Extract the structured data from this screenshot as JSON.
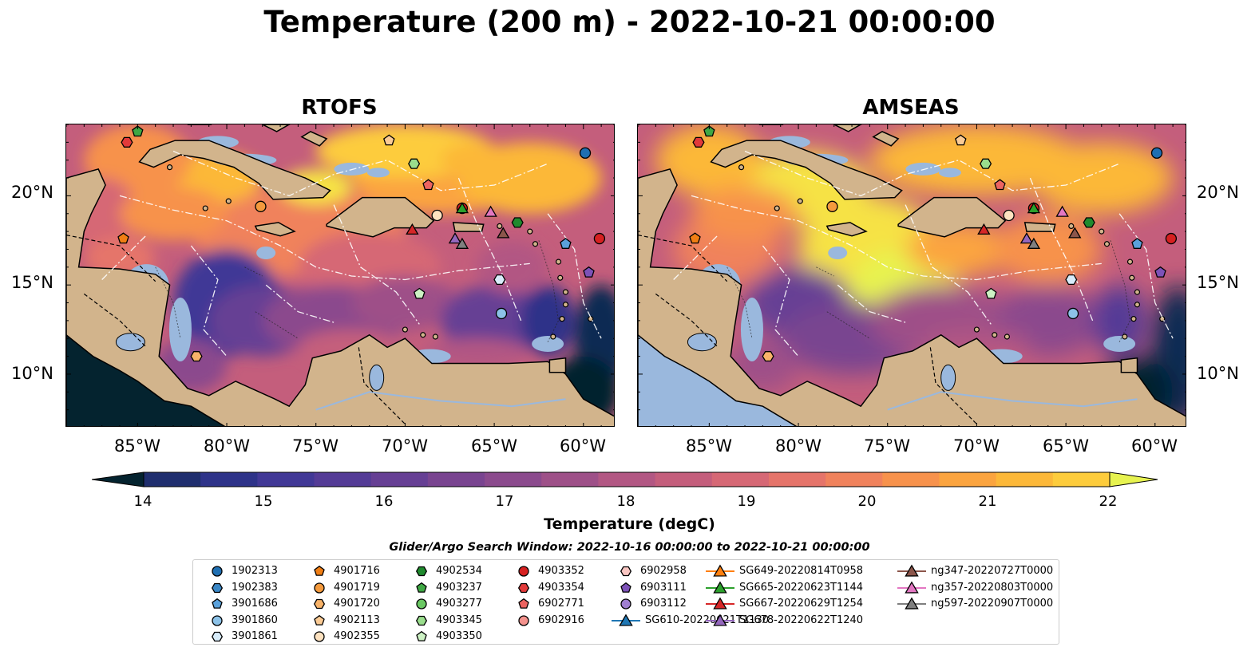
{
  "title": "Temperature (200 m) - 2022-10-21 00:00:00",
  "panels": [
    {
      "title": "RTOFS"
    },
    {
      "title": "AMSEAS"
    }
  ],
  "axes": {
    "x_ticks": [
      "85°W",
      "80°W",
      "75°W",
      "70°W",
      "65°W",
      "60°W"
    ],
    "y_ticks": [
      "20°N",
      "15°N",
      "10°N"
    ],
    "lon_range": [
      -89,
      -58.2
    ],
    "lat_range": [
      7,
      24
    ]
  },
  "colorbar": {
    "label": "Temperature (degC)",
    "ticks": [
      "14",
      "15",
      "16",
      "17",
      "18",
      "19",
      "20",
      "21",
      "22"
    ],
    "range": [
      14,
      22
    ],
    "colors": [
      "#04232f",
      "#0f2a52",
      "#1f2e6e",
      "#2e3389",
      "#413896",
      "#543b96",
      "#663f94",
      "#794490",
      "#8b4a8d",
      "#9e5088",
      "#b25783",
      "#c45e7c",
      "#d66875",
      "#e5746a",
      "#f0825c",
      "#f7924c",
      "#fba43f",
      "#fcb839",
      "#fdcc3c",
      "#f6e244",
      "#e7f350"
    ]
  },
  "legend": {
    "title": "Glider/Argo Search Window: 2022-10-16 00:00:00 to 2022-10-21 00:00:00",
    "entries": [
      {
        "label": "1902313",
        "marker": "circle",
        "color": "#1f6fb2"
      },
      {
        "label": "1902383",
        "marker": "hexagon",
        "color": "#3a87c6"
      },
      {
        "label": "3901686",
        "marker": "pentagon",
        "color": "#5aa1db"
      },
      {
        "label": "3901860",
        "marker": "circle",
        "color": "#8cc2e8"
      },
      {
        "label": "3901861",
        "marker": "hexagon",
        "color": "#d8ecfa"
      },
      {
        "label": "4901716",
        "marker": "pentagon",
        "color": "#f07e14"
      },
      {
        "label": "4901719",
        "marker": "circle",
        "color": "#f49a3d"
      },
      {
        "label": "4901720",
        "marker": "hexagon",
        "color": "#f8b369"
      },
      {
        "label": "4902113",
        "marker": "pentagon",
        "color": "#fbcb95"
      },
      {
        "label": "4902355",
        "marker": "circle",
        "color": "#fde2c0"
      },
      {
        "label": "4902534",
        "marker": "hexagon",
        "color": "#1f8a2e"
      },
      {
        "label": "4903237",
        "marker": "pentagon",
        "color": "#3fa844"
      },
      {
        "label": "4903277",
        "marker": "circle",
        "color": "#6ac863"
      },
      {
        "label": "4903345",
        "marker": "hexagon",
        "color": "#9ade8d"
      },
      {
        "label": "4903350",
        "marker": "pentagon",
        "color": "#cdf2c4"
      },
      {
        "label": "4903352",
        "marker": "circle",
        "color": "#d62020"
      },
      {
        "label": "4903354",
        "marker": "hexagon",
        "color": "#e23a3a"
      },
      {
        "label": "6902771",
        "marker": "pentagon",
        "color": "#ec6461"
      },
      {
        "label": "6902916",
        "marker": "circle",
        "color": "#f4928d"
      },
      {
        "label": "6902958",
        "marker": "hexagon",
        "color": "#fac6c2"
      },
      {
        "label": "6903111",
        "marker": "pentagon",
        "color": "#7d52b8"
      },
      {
        "label": "6903112",
        "marker": "circle",
        "color": "#a07fd0"
      },
      {
        "label": "SG610-20220621T1130",
        "marker": "triangle-line",
        "color": "#1f77b4"
      },
      {
        "label": "SG649-20220814T0958",
        "marker": "triangle-line",
        "color": "#ff7f0e"
      },
      {
        "label": "SG665-20220623T1144",
        "marker": "triangle-line",
        "color": "#2ca02c"
      },
      {
        "label": "SG667-20220629T1254",
        "marker": "triangle-line",
        "color": "#d62728"
      },
      {
        "label": "SG678-20220622T1240",
        "marker": "triangle-line",
        "color": "#9467bd"
      },
      {
        "label": "ng347-20220727T0000",
        "marker": "triangle-line",
        "color": "#8c564b"
      },
      {
        "label": "ng357-20220803T0000",
        "marker": "triangle-line",
        "color": "#e377c2"
      },
      {
        "label": "ng597-20220907T0000",
        "marker": "triangle-line",
        "color": "#7f7f7f"
      }
    ]
  },
  "observations": [
    {
      "id": "4903237",
      "lon": -85.0,
      "lat": 23.6
    },
    {
      "id": "4903354",
      "lon": -85.6,
      "lat": 23.0
    },
    {
      "id": "4902113",
      "lon": -70.9,
      "lat": 23.1
    },
    {
      "id": "4903345",
      "lon": -69.5,
      "lat": 21.8
    },
    {
      "id": "6902771",
      "lon": -68.7,
      "lat": 20.6
    },
    {
      "id": "1902313",
      "lon": -59.9,
      "lat": 22.4
    },
    {
      "id": "4901719",
      "lon": -78.1,
      "lat": 19.4
    },
    {
      "id": "4903352",
      "lon": -66.8,
      "lat": 19.3
    },
    {
      "id": "4902355",
      "lon": -68.2,
      "lat": 18.9
    },
    {
      "id": "4902534",
      "lon": -63.7,
      "lat": 18.5
    },
    {
      "id": "4901716",
      "lon": -85.8,
      "lat": 17.6
    },
    {
      "id": "3901686",
      "lon": -61.0,
      "lat": 17.3
    },
    {
      "id": "6903111",
      "lon": -59.7,
      "lat": 15.7
    },
    {
      "id": "3901861",
      "lon": -64.7,
      "lat": 15.3
    },
    {
      "id": "4903350",
      "lon": -69.2,
      "lat": 14.5
    },
    {
      "id": "3901860",
      "lon": -64.6,
      "lat": 13.4
    },
    {
      "id": "4901720",
      "lon": -81.7,
      "lat": 11.0
    },
    {
      "id": "4903352",
      "lon": -59.1,
      "lat": 17.6
    },
    {
      "id": "SG665-20220623T1144",
      "lon": -66.8,
      "lat": 19.3
    },
    {
      "id": "ng357-20220803T0000",
      "lon": -65.2,
      "lat": 19.1
    },
    {
      "id": "SG667-20220629T1254",
      "lon": -69.6,
      "lat": 18.1
    },
    {
      "id": "SG678-20220622T1240",
      "lon": -67.2,
      "lat": 17.6
    },
    {
      "id": "ng597-20220907T0000",
      "lon": -66.8,
      "lat": 17.3
    },
    {
      "id": "ng347-20220727T0000",
      "lon": -64.5,
      "lat": 17.9
    }
  ]
}
